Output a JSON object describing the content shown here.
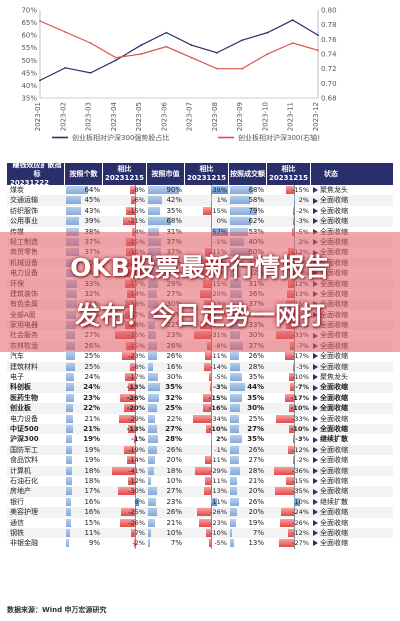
{
  "chart_data": [
    {
      "type": "line",
      "x": [
        "2023-01",
        "2023-02",
        "2023-03",
        "2023-04",
        "2023-05",
        "2023-06",
        "2023-07",
        "2023-08",
        "2023-09",
        "2023-10",
        "2023-11",
        "2023-12"
      ],
      "y_left_ticks": [
        "35%",
        "40%",
        "45%",
        "50%",
        "55%",
        "60%",
        "65%",
        "70%"
      ],
      "y_right_ticks": [
        "0.68",
        "0.70",
        "0.72",
        "0.74",
        "0.76",
        "0.78",
        "0.80"
      ],
      "ylim_left": [
        35,
        70
      ],
      "ylim_right": [
        0.68,
        0.8
      ],
      "series": [
        {
          "name": "创业板相对沪深300强势股占比",
          "axis": "left",
          "color": "#2a2f6b",
          "values": [
            42,
            47,
            45,
            50,
            56,
            61,
            56,
            53,
            58,
            61,
            66,
            60
          ]
        },
        {
          "name": "创业板相对沪深300(右轴)",
          "axis": "right",
          "color": "#d9534f",
          "values": [
            0.785,
            0.77,
            0.755,
            0.735,
            0.74,
            0.75,
            0.735,
            0.72,
            0.72,
            0.74,
            0.755,
            0.745
          ]
        }
      ]
    },
    {
      "type": "table",
      "columns": [
        "赚钱效应扩散指标 20231222",
        "按照个数",
        "相比 20231215",
        "按照市值",
        "相比 20231215",
        "按照成交额",
        "相比 20231215",
        "状态"
      ],
      "rows": [
        {
          "sector": "煤炭",
          "count": "64%",
          "count_chg": "-8%",
          "cap": "90%",
          "cap_chg": "39%",
          "amt": "68%",
          "amt_chg": "-15%",
          "state": "聚焦龙头"
        },
        {
          "sector": "交通运输",
          "count": "45%",
          "count_chg": "-6%",
          "cap": "42%",
          "cap_chg": "1%",
          "amt": "58%",
          "amt_chg": "2%",
          "state": "全面收缩"
        },
        {
          "sector": "纺织服饰",
          "count": "43%",
          "count_chg": "-15%",
          "cap": "35%",
          "cap_chg": "-15%",
          "amt": "79%",
          "amt_chg": "-2%",
          "state": "全面收缩"
        },
        {
          "sector": "公用事业",
          "count": "39%",
          "count_chg": "-21%",
          "cap": "68%",
          "cap_chg": "0%",
          "amt": "62%",
          "amt_chg": "-3%",
          "state": "全面收缩"
        },
        {
          "sector": "传媒",
          "count": "38%",
          "count_chg": "-4%",
          "cap": "31%",
          "cap_chg": "57%",
          "amt": "53%",
          "amt_chg": "-5%",
          "state": "全面收缩"
        },
        {
          "sector": "轻工制造",
          "count": "37%",
          "count_chg": "-15%",
          "cap": "37%",
          "cap_chg": "-1%",
          "amt": "40%",
          "amt_chg": "2%",
          "state": "全面收缩"
        },
        {
          "sector": "商贸零售",
          "count": "37%",
          "count_chg": "-16%",
          "cap": "37%",
          "cap_chg": "-11%",
          "amt": "60%",
          "amt_chg": "-12%",
          "state": "全面收缩"
        },
        {
          "sector": "机械设备",
          "count": "35%",
          "count_chg": "-13%",
          "cap": "26%",
          "cap_chg": "-16%",
          "amt": "40%",
          "amt_chg": "-20%",
          "state": "全面收缩"
        },
        {
          "sector": "电力设备",
          "count": "34%",
          "count_chg": "-20%",
          "cap": "28%",
          "cap_chg": "-17%",
          "amt": "32%",
          "amt_chg": "-10%",
          "state": "全面收缩"
        },
        {
          "sector": "环保",
          "count": "33%",
          "count_chg": "-17%",
          "cap": "29%",
          "cap_chg": "-15%",
          "amt": "31%",
          "amt_chg": "-12%",
          "state": "全面收缩"
        },
        {
          "sector": "建筑装饰",
          "count": "32%",
          "count_chg": "-14%",
          "cap": "27%",
          "cap_chg": "-20%",
          "amt": "36%",
          "amt_chg": "-13%",
          "state": "全面收缩"
        },
        {
          "sector": "有色金属",
          "count": "31%",
          "count_chg": "-18%",
          "cap": "30%",
          "cap_chg": "-13%",
          "amt": "37%",
          "amt_chg": "-15%",
          "state": "全面收缩"
        },
        {
          "sector": "全部A股",
          "count": "30%",
          "count_chg": "-17%",
          "cap": "35%",
          "cap_chg": "-11%",
          "amt": "34%",
          "amt_chg": "-12%",
          "state": "全面收缩"
        },
        {
          "sector": "家用电器",
          "count": "30%",
          "count_chg": "-18%",
          "cap": "22%",
          "cap_chg": "-20%",
          "amt": "33%",
          "amt_chg": "-15%",
          "state": "全面收缩"
        },
        {
          "sector": "社会服务",
          "count": "27%",
          "count_chg": "-35%",
          "cap": "23%",
          "cap_chg": "-31%",
          "amt": "30%",
          "amt_chg": "-33%",
          "state": "全面收缩"
        },
        {
          "sector": "农林牧渔",
          "count": "26%",
          "count_chg": "-15%",
          "cap": "26%",
          "cap_chg": "-8%",
          "amt": "37%",
          "amt_chg": "-7%",
          "state": "全面收缩"
        },
        {
          "sector": "汽车",
          "count": "25%",
          "count_chg": "-23%",
          "cap": "26%",
          "cap_chg": "-11%",
          "amt": "26%",
          "amt_chg": "-17%",
          "state": "全面收缩"
        },
        {
          "sector": "建筑材料",
          "count": "25%",
          "count_chg": "-8%",
          "cap": "16%",
          "cap_chg": "-14%",
          "amt": "28%",
          "amt_chg": "-3%",
          "state": "全面收缩"
        },
        {
          "sector": "电子",
          "count": "24%",
          "count_chg": "-17%",
          "cap": "30%",
          "cap_chg": "-5%",
          "amt": "35%",
          "amt_chg": "-10%",
          "state": "聚焦龙头"
        },
        {
          "sector": "科创板",
          "count": "24%",
          "count_chg": "-13%",
          "cap": "35%",
          "cap_chg": "-3%",
          "amt": "44%",
          "amt_chg": "-7%",
          "state": "全面收缩",
          "bold": true
        },
        {
          "sector": "医药生物",
          "count": "23%",
          "count_chg": "-26%",
          "cap": "32%",
          "cap_chg": "-15%",
          "amt": "35%",
          "amt_chg": "-17%",
          "state": "全面收缩",
          "bold": true
        },
        {
          "sector": "创业板",
          "count": "22%",
          "count_chg": "-20%",
          "cap": "25%",
          "cap_chg": "-16%",
          "amt": "30%",
          "amt_chg": "-10%",
          "state": "全面收缩",
          "bold": true
        },
        {
          "sector": "电力设备",
          "count": "21%",
          "count_chg": "-29%",
          "cap": "22%",
          "cap_chg": "-34%",
          "amt": "25%",
          "amt_chg": "-33%",
          "state": "全面收缩"
        },
        {
          "sector": "中证500",
          "count": "21%",
          "count_chg": "-13%",
          "cap": "27%",
          "cap_chg": "-10%",
          "amt": "27%",
          "amt_chg": "-10%",
          "state": "全面收缩",
          "bold": true
        },
        {
          "sector": "沪深300",
          "count": "19%",
          "count_chg": "-1%",
          "cap": "28%",
          "cap_chg": "2%",
          "amt": "35%",
          "amt_chg": "-3%",
          "state": "继续扩散",
          "bold": true
        },
        {
          "sector": "国防军工",
          "count": "19%",
          "count_chg": "-19%",
          "cap": "26%",
          "cap_chg": "-1%",
          "amt": "26%",
          "amt_chg": "-12%",
          "state": "全面收缩"
        },
        {
          "sector": "食品饮料",
          "count": "19%",
          "count_chg": "-14%",
          "cap": "20%",
          "cap_chg": "-11%",
          "amt": "27%",
          "amt_chg": "-2%",
          "state": "全面收缩"
        },
        {
          "sector": "计算机",
          "count": "18%",
          "count_chg": "-41%",
          "cap": "18%",
          "cap_chg": "-29%",
          "amt": "28%",
          "amt_chg": "-36%",
          "state": "全面收缩"
        },
        {
          "sector": "石油石化",
          "count": "18%",
          "count_chg": "-12%",
          "cap": "10%",
          "cap_chg": "-11%",
          "amt": "21%",
          "amt_chg": "-15%",
          "state": "全面收缩"
        },
        {
          "sector": "房地产",
          "count": "17%",
          "count_chg": "-30%",
          "cap": "27%",
          "cap_chg": "-13%",
          "amt": "20%",
          "amt_chg": "-35%",
          "state": "全面收缩"
        },
        {
          "sector": "银行",
          "count": "16%",
          "count_chg": "8%",
          "cap": "23%",
          "cap_chg": "11%",
          "amt": "26%",
          "amt_chg": "10%",
          "state": "继续扩散"
        },
        {
          "sector": "美容护理",
          "count": "16%",
          "count_chg": "-25%",
          "cap": "26%",
          "cap_chg": "-26%",
          "amt": "20%",
          "amt_chg": "-24%",
          "state": "全面收缩"
        },
        {
          "sector": "通信",
          "count": "15%",
          "count_chg": "-26%",
          "cap": "21%",
          "cap_chg": "-23%",
          "amt": "19%",
          "amt_chg": "-26%",
          "state": "全面收缩"
        },
        {
          "sector": "钢铁",
          "count": "11%",
          "count_chg": "-7%",
          "cap": "10%",
          "cap_chg": "-10%",
          "amt": "7%",
          "amt_chg": "-12%",
          "state": "全面收缩"
        },
        {
          "sector": "非银金融",
          "count": "9%",
          "count_chg": "-2%",
          "cap": "7%",
          "cap_chg": "-5%",
          "amt": "13%",
          "amt_chg": "-27%",
          "state": "全面收缩"
        }
      ]
    }
  ],
  "header": {
    "sector_line1": "赚钱效应扩散指标",
    "sector_line2": "20231222",
    "count": "按照个数",
    "chg1a": "相比",
    "chg1b": "20231215",
    "cap": "按照市值",
    "chg2a": "相比",
    "chg2b": "20231215",
    "amt": "按照成交额",
    "chg3a": "相比",
    "chg3b": "20231215",
    "state": "状态"
  },
  "source": "数据来源：Wind  申万宏源研究",
  "banner": {
    "line1": "OKB股票最新行情报告",
    "line2": "发布！今日走势一网打"
  },
  "colors": {
    "navy": "#2a2f6b",
    "red": "#d9534f",
    "blue_bar": "#5d8fcf",
    "red_bar": "#e04848"
  }
}
